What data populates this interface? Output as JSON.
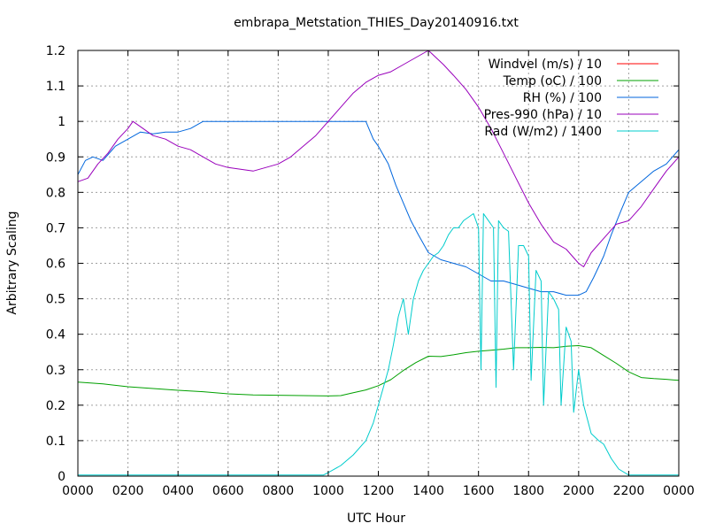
{
  "chart_data": {
    "type": "line",
    "title": "embrapa_Metstation_THIES_Day20140916.txt",
    "xlabel": "UTC Hour",
    "ylabel": "Arbitrary Scaling",
    "xlim": [
      0,
      24
    ],
    "ylim": [
      0,
      1.2
    ],
    "x_ticks": [
      {
        "value": 0,
        "label": "0000"
      },
      {
        "value": 2,
        "label": "0200"
      },
      {
        "value": 4,
        "label": "0400"
      },
      {
        "value": 6,
        "label": "0600"
      },
      {
        "value": 8,
        "label": "0800"
      },
      {
        "value": 10,
        "label": "1000"
      },
      {
        "value": 12,
        "label": "1200"
      },
      {
        "value": 14,
        "label": "1400"
      },
      {
        "value": 16,
        "label": "1600"
      },
      {
        "value": 18,
        "label": "1800"
      },
      {
        "value": 20,
        "label": "2000"
      },
      {
        "value": 22,
        "label": "2200"
      },
      {
        "value": 24,
        "label": "0000"
      }
    ],
    "y_ticks": [
      {
        "value": 0,
        "label": "0"
      },
      {
        "value": 0.1,
        "label": "0.1"
      },
      {
        "value": 0.2,
        "label": "0.2"
      },
      {
        "value": 0.3,
        "label": "0.3"
      },
      {
        "value": 0.4,
        "label": "0.4"
      },
      {
        "value": 0.5,
        "label": "0.5"
      },
      {
        "value": 0.6,
        "label": "0.6"
      },
      {
        "value": 0.7,
        "label": "0.7"
      },
      {
        "value": 0.8,
        "label": "0.8"
      },
      {
        "value": 0.9,
        "label": "0.9"
      },
      {
        "value": 1.0,
        "label": "1"
      },
      {
        "value": 1.1,
        "label": "1.1"
      },
      {
        "value": 1.2,
        "label": "1.2"
      }
    ],
    "grid": true,
    "legend_position": "top-right",
    "series": [
      {
        "name": "Windvel (m/s) / 10",
        "color": "#ff0000",
        "points": []
      },
      {
        "name": "Temp (oC) / 100",
        "color": "#00a000",
        "points": [
          [
            0,
            0.265
          ],
          [
            1,
            0.26
          ],
          [
            2,
            0.252
          ],
          [
            3,
            0.247
          ],
          [
            4,
            0.242
          ],
          [
            5,
            0.238
          ],
          [
            6,
            0.232
          ],
          [
            7,
            0.229
          ],
          [
            8,
            0.228
          ],
          [
            9,
            0.227
          ],
          [
            10,
            0.226
          ],
          [
            10.5,
            0.227
          ],
          [
            11,
            0.235
          ],
          [
            11.5,
            0.243
          ],
          [
            12,
            0.255
          ],
          [
            12.5,
            0.272
          ],
          [
            13,
            0.298
          ],
          [
            13.5,
            0.32
          ],
          [
            14,
            0.338
          ],
          [
            14.5,
            0.337
          ],
          [
            15,
            0.342
          ],
          [
            15.5,
            0.348
          ],
          [
            16,
            0.352
          ],
          [
            16.5,
            0.355
          ],
          [
            17,
            0.358
          ],
          [
            17.5,
            0.362
          ],
          [
            18,
            0.362
          ],
          [
            18.5,
            0.363
          ],
          [
            19,
            0.362
          ],
          [
            19.5,
            0.366
          ],
          [
            20,
            0.368
          ],
          [
            20.5,
            0.362
          ],
          [
            21,
            0.34
          ],
          [
            21.5,
            0.318
          ],
          [
            22,
            0.294
          ],
          [
            22.5,
            0.278
          ],
          [
            23,
            0.275
          ],
          [
            23.5,
            0.273
          ],
          [
            24,
            0.27
          ]
        ]
      },
      {
        "name": "RH (%) / 100",
        "color": "#0066dd",
        "points": [
          [
            0,
            0.85
          ],
          [
            0.3,
            0.89
          ],
          [
            0.6,
            0.9
          ],
          [
            1,
            0.89
          ],
          [
            1.5,
            0.93
          ],
          [
            2,
            0.95
          ],
          [
            2.5,
            0.97
          ],
          [
            3,
            0.965
          ],
          [
            3.5,
            0.97
          ],
          [
            4,
            0.97
          ],
          [
            4.5,
            0.98
          ],
          [
            5,
            1.0
          ],
          [
            6,
            1.0
          ],
          [
            7,
            1.0
          ],
          [
            8,
            1.0
          ],
          [
            9,
            1.0
          ],
          [
            10,
            1.0
          ],
          [
            11,
            1.0
          ],
          [
            11.5,
            1.0
          ],
          [
            11.8,
            0.95
          ],
          [
            12,
            0.93
          ],
          [
            12.4,
            0.88
          ],
          [
            12.7,
            0.82
          ],
          [
            13,
            0.77
          ],
          [
            13.3,
            0.72
          ],
          [
            13.6,
            0.68
          ],
          [
            14,
            0.63
          ],
          [
            14.5,
            0.61
          ],
          [
            15,
            0.6
          ],
          [
            15.5,
            0.59
          ],
          [
            16,
            0.57
          ],
          [
            16.5,
            0.55
          ],
          [
            17,
            0.55
          ],
          [
            17.5,
            0.54
          ],
          [
            18,
            0.53
          ],
          [
            18.5,
            0.52
          ],
          [
            19,
            0.52
          ],
          [
            19.5,
            0.51
          ],
          [
            20,
            0.51
          ],
          [
            20.3,
            0.52
          ],
          [
            20.6,
            0.56
          ],
          [
            21,
            0.62
          ],
          [
            21.3,
            0.68
          ],
          [
            21.7,
            0.75
          ],
          [
            22,
            0.8
          ],
          [
            22.5,
            0.83
          ],
          [
            23,
            0.86
          ],
          [
            23.5,
            0.88
          ],
          [
            24,
            0.92
          ]
        ]
      },
      {
        "name": "Pres-990 (hPa) / 10",
        "color": "#9900bb",
        "points": [
          [
            0,
            0.83
          ],
          [
            0.4,
            0.84
          ],
          [
            0.8,
            0.88
          ],
          [
            1.2,
            0.91
          ],
          [
            1.6,
            0.95
          ],
          [
            2,
            0.98
          ],
          [
            2.2,
            1.0
          ],
          [
            2.6,
            0.98
          ],
          [
            3,
            0.96
          ],
          [
            3.5,
            0.95
          ],
          [
            4,
            0.93
          ],
          [
            4.5,
            0.92
          ],
          [
            5,
            0.9
          ],
          [
            5.5,
            0.88
          ],
          [
            6,
            0.87
          ],
          [
            6.5,
            0.865
          ],
          [
            7,
            0.86
          ],
          [
            7.5,
            0.87
          ],
          [
            8,
            0.88
          ],
          [
            8.5,
            0.9
          ],
          [
            9,
            0.93
          ],
          [
            9.5,
            0.96
          ],
          [
            10,
            1.0
          ],
          [
            10.5,
            1.04
          ],
          [
            11,
            1.08
          ],
          [
            11.5,
            1.11
          ],
          [
            12,
            1.13
          ],
          [
            12.5,
            1.14
          ],
          [
            13,
            1.16
          ],
          [
            13.5,
            1.18
          ],
          [
            14,
            1.2
          ],
          [
            14.3,
            1.18
          ],
          [
            14.6,
            1.16
          ],
          [
            15,
            1.13
          ],
          [
            15.5,
            1.09
          ],
          [
            16,
            1.04
          ],
          [
            16.5,
            0.98
          ],
          [
            17,
            0.91
          ],
          [
            17.5,
            0.84
          ],
          [
            18,
            0.77
          ],
          [
            18.5,
            0.71
          ],
          [
            19,
            0.66
          ],
          [
            19.5,
            0.64
          ],
          [
            20,
            0.6
          ],
          [
            20.2,
            0.59
          ],
          [
            20.5,
            0.63
          ],
          [
            21,
            0.67
          ],
          [
            21.5,
            0.71
          ],
          [
            22,
            0.72
          ],
          [
            22.5,
            0.76
          ],
          [
            23,
            0.81
          ],
          [
            23.5,
            0.86
          ],
          [
            24,
            0.9
          ]
        ]
      },
      {
        "name": "Rad (W/m2) / 1400",
        "color": "#00cccc",
        "points": [
          [
            0,
            0.003
          ],
          [
            2,
            0.003
          ],
          [
            4,
            0.003
          ],
          [
            6,
            0.003
          ],
          [
            8,
            0.003
          ],
          [
            9.8,
            0.003
          ],
          [
            10,
            0.01
          ],
          [
            10.5,
            0.03
          ],
          [
            11,
            0.06
          ],
          [
            11.5,
            0.1
          ],
          [
            11.8,
            0.15
          ],
          [
            12,
            0.2
          ],
          [
            12.2,
            0.25
          ],
          [
            12.4,
            0.3
          ],
          [
            12.6,
            0.37
          ],
          [
            12.8,
            0.45
          ],
          [
            13,
            0.5
          ],
          [
            13.2,
            0.4
          ],
          [
            13.4,
            0.5
          ],
          [
            13.6,
            0.55
          ],
          [
            13.8,
            0.58
          ],
          [
            14,
            0.6
          ],
          [
            14.2,
            0.62
          ],
          [
            14.4,
            0.63
          ],
          [
            14.6,
            0.65
          ],
          [
            14.8,
            0.68
          ],
          [
            15,
            0.7
          ],
          [
            15.2,
            0.7
          ],
          [
            15.4,
            0.72
          ],
          [
            15.6,
            0.73
          ],
          [
            15.8,
            0.74
          ],
          [
            16,
            0.7
          ],
          [
            16.1,
            0.3
          ],
          [
            16.2,
            0.74
          ],
          [
            16.4,
            0.72
          ],
          [
            16.6,
            0.7
          ],
          [
            16.7,
            0.25
          ],
          [
            16.8,
            0.72
          ],
          [
            17,
            0.7
          ],
          [
            17.2,
            0.69
          ],
          [
            17.4,
            0.3
          ],
          [
            17.6,
            0.65
          ],
          [
            17.8,
            0.65
          ],
          [
            18,
            0.62
          ],
          [
            18.1,
            0.27
          ],
          [
            18.3,
            0.58
          ],
          [
            18.5,
            0.55
          ],
          [
            18.6,
            0.2
          ],
          [
            18.8,
            0.52
          ],
          [
            19,
            0.5
          ],
          [
            19.2,
            0.47
          ],
          [
            19.3,
            0.2
          ],
          [
            19.5,
            0.42
          ],
          [
            19.7,
            0.38
          ],
          [
            19.8,
            0.18
          ],
          [
            20,
            0.3
          ],
          [
            20.2,
            0.2
          ],
          [
            20.5,
            0.12
          ],
          [
            20.8,
            0.1
          ],
          [
            21,
            0.09
          ],
          [
            21.3,
            0.05
          ],
          [
            21.6,
            0.02
          ],
          [
            22,
            0.003
          ],
          [
            24,
            0.003
          ]
        ]
      }
    ]
  }
}
